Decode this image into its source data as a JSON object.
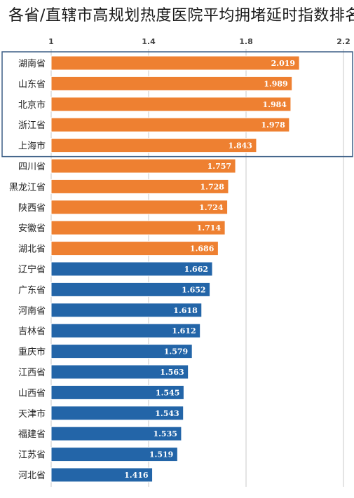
{
  "chart_data": {
    "type": "bar",
    "orientation": "horizontal",
    "title": "各省/直辖市高规划热度医院平均拥堵延时指数排名",
    "xlim": [
      1,
      2.2
    ],
    "xticks": [
      "1",
      "1.4",
      "1.8",
      "2.2"
    ],
    "xtick_values": [
      1,
      1.4,
      1.8,
      2.2
    ],
    "grid": true,
    "categories": [
      "湖南省",
      "山东省",
      "北京市",
      "浙江省",
      "上海市",
      "四川省",
      "黑龙江省",
      "陕西省",
      "安徽省",
      "湖北省",
      "辽宁省",
      "广东省",
      "河南省",
      "吉林省",
      "重庆市",
      "江西省",
      "山西省",
      "天津市",
      "福建省",
      "江苏省",
      "河北省"
    ],
    "values": [
      2.019,
      1.989,
      1.984,
      1.978,
      1.843,
      1.757,
      1.728,
      1.724,
      1.714,
      1.686,
      1.662,
      1.652,
      1.618,
      1.612,
      1.579,
      1.563,
      1.545,
      1.543,
      1.535,
      1.519,
      1.416
    ],
    "value_labels": [
      "2.019",
      "1.989",
      "1.984",
      "1.978",
      "1.843",
      "1.757",
      "1.728",
      "1.724",
      "1.714",
      "1.686",
      "1.662",
      "1.652",
      "1.618",
      "1.612",
      "1.579",
      "1.563",
      "1.545",
      "1.543",
      "1.535",
      "1.519",
      "1.416"
    ],
    "orange_count": 10,
    "highlight_top_count": 5,
    "colors": {
      "orange": "#ee8031",
      "blue": "#2365a8",
      "highlight_border": "#3d5f86",
      "grid": "#c8c8c8"
    }
  }
}
